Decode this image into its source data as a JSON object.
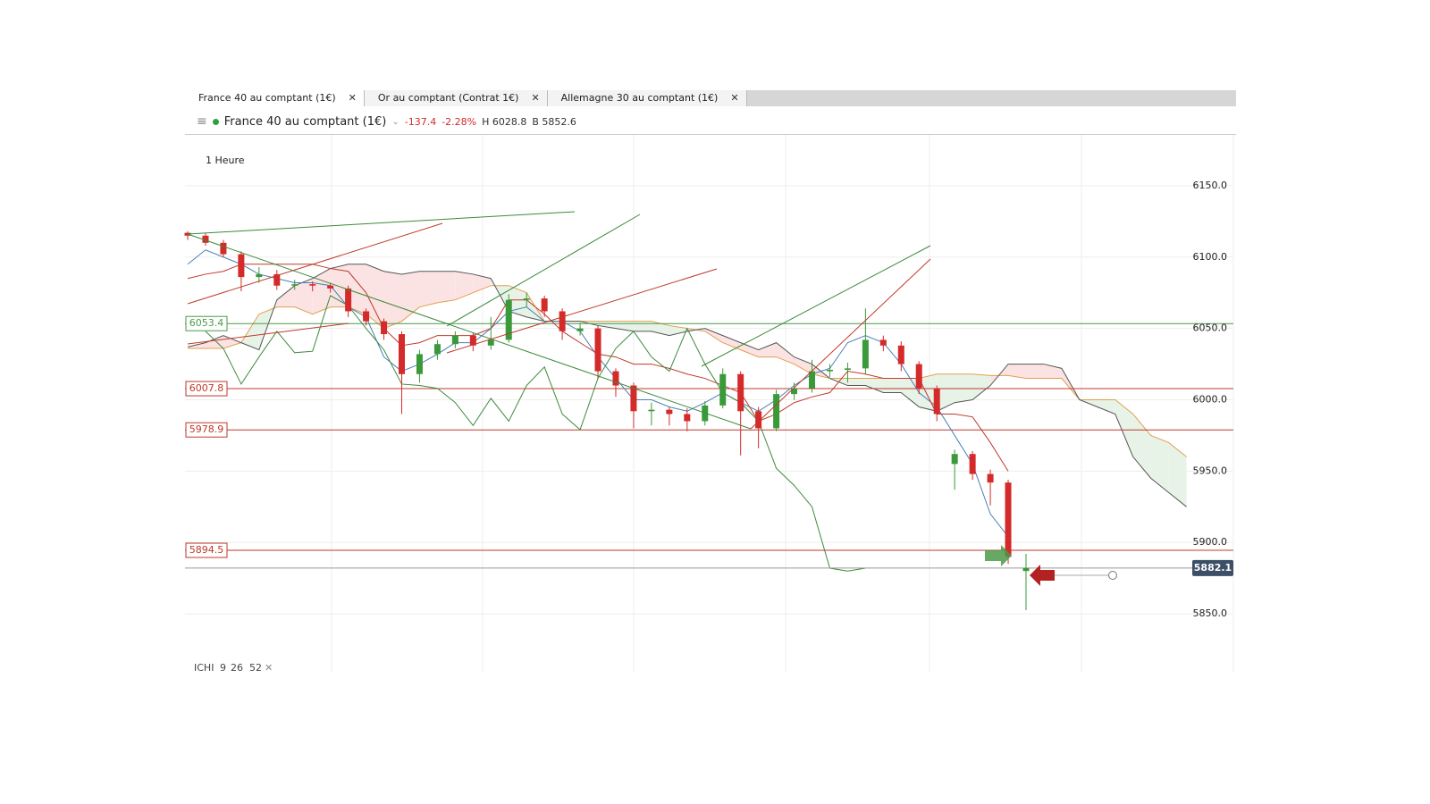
{
  "tabs": [
    "France 40 au comptant (1€)",
    "Or au comptant (Contrat 1€)",
    "Allemagne 30 au comptant (1€)"
  ],
  "header": {
    "title": "France 40 au comptant (1€)",
    "change": "-137.4",
    "change_pct": "-2.28%",
    "high": "H 6028.8",
    "low": "B 5852.6"
  },
  "indicator": {
    "name": "ICHI",
    "params": [
      9,
      26,
      52
    ]
  },
  "chart_data": {
    "type": "candlestick",
    "interval": "1 Heure",
    "ylim": [
      5808.75,
      6185.625
    ],
    "yticks": [
      {
        "value": 6150,
        "label": "6150.0"
      },
      {
        "value": 6100,
        "label": "6100.0"
      },
      {
        "value": 6050,
        "label": "6050.0"
      },
      {
        "value": 6000,
        "label": "6000.0"
      },
      {
        "value": 5950,
        "label": "5950.0"
      },
      {
        "value": 5900,
        "label": "5900.0"
      },
      {
        "value": 5850,
        "label": "5850.0"
      }
    ],
    "grid": true,
    "up_color": "#3a9a3a",
    "down_color": "#d42a2a",
    "candles": [
      {
        "o": 6117,
        "h": 6118,
        "l": 6112,
        "c": 6115
      },
      {
        "o": 6115,
        "h": 6117,
        "l": 6108,
        "c": 6110
      },
      {
        "o": 6110,
        "h": 6112,
        "l": 6100,
        "c": 6102
      },
      {
        "o": 6102,
        "h": 6104,
        "l": 6076,
        "c": 6086
      },
      {
        "o": 6086,
        "h": 6093,
        "l": 6082,
        "c": 6088
      },
      {
        "o": 6088,
        "h": 6091,
        "l": 6077,
        "c": 6080
      },
      {
        "o": 6080,
        "h": 6084,
        "l": 6077,
        "c": 6081
      },
      {
        "o": 6081,
        "h": 6083,
        "l": 6076,
        "c": 6080
      },
      {
        "o": 6080,
        "h": 6082,
        "l": 6075,
        "c": 6078
      },
      {
        "o": 6078,
        "h": 6080,
        "l": 6058,
        "c": 6062
      },
      {
        "o": 6062,
        "h": 6064,
        "l": 6052,
        "c": 6055
      },
      {
        "o": 6055,
        "h": 6057,
        "l": 6042,
        "c": 6046
      },
      {
        "o": 6046,
        "h": 6048,
        "l": 5990,
        "c": 6018
      },
      {
        "o": 6018,
        "h": 6035,
        "l": 6012,
        "c": 6032
      },
      {
        "o": 6032,
        "h": 6042,
        "l": 6028,
        "c": 6039
      },
      {
        "o": 6039,
        "h": 6048,
        "l": 6036,
        "c": 6045
      },
      {
        "o": 6045,
        "h": 6047,
        "l": 6034,
        "c": 6038
      },
      {
        "o": 6038,
        "h": 6058,
        "l": 6035,
        "c": 6042
      },
      {
        "o": 6042,
        "h": 6074,
        "l": 6040,
        "c": 6070
      },
      {
        "o": 6070,
        "h": 6075,
        "l": 6065,
        "c": 6071
      },
      {
        "o": 6071,
        "h": 6073,
        "l": 6058,
        "c": 6062
      },
      {
        "o": 6062,
        "h": 6064,
        "l": 6042,
        "c": 6048
      },
      {
        "o": 6048,
        "h": 6054,
        "l": 6045,
        "c": 6050
      },
      {
        "o": 6050,
        "h": 6052,
        "l": 6015,
        "c": 6020
      },
      {
        "o": 6020,
        "h": 6022,
        "l": 6002,
        "c": 6010
      },
      {
        "o": 6010,
        "h": 6012,
        "l": 5980,
        "c": 5992
      },
      {
        "o": 5992,
        "h": 5998,
        "l": 5982,
        "c": 5993
      },
      {
        "o": 5993,
        "h": 5995,
        "l": 5982,
        "c": 5990
      },
      {
        "o": 5990,
        "h": 5994,
        "l": 5978,
        "c": 5985
      },
      {
        "o": 5985,
        "h": 5999,
        "l": 5982,
        "c": 5996
      },
      {
        "o": 5996,
        "h": 6022,
        "l": 5994,
        "c": 6018
      },
      {
        "o": 6018,
        "h": 6020,
        "l": 5961,
        "c": 5992
      },
      {
        "o": 5992,
        "h": 5995,
        "l": 5966,
        "c": 5980
      },
      {
        "o": 5980,
        "h": 6007,
        "l": 5978,
        "c": 6004
      },
      {
        "o": 6004,
        "h": 6012,
        "l": 6000,
        "c": 6008
      },
      {
        "o": 6008,
        "h": 6028,
        "l": 6005,
        "c": 6020
      },
      {
        "o": 6020,
        "h": 6025,
        "l": 6016,
        "c": 6021
      },
      {
        "o": 6021,
        "h": 6026,
        "l": 6012,
        "c": 6022
      },
      {
        "o": 6022,
        "h": 6064,
        "l": 6018,
        "c": 6042
      },
      {
        "o": 6042,
        "h": 6045,
        "l": 6034,
        "c": 6038
      },
      {
        "o": 6038,
        "h": 6041,
        "l": 6020,
        "c": 6025
      },
      {
        "o": 6025,
        "h": 6027,
        "l": 6004,
        "c": 6008
      },
      {
        "o": 6008,
        "h": 6010,
        "l": 5985,
        "c": 5990
      },
      {
        "o": 5955,
        "h": 5965,
        "l": 5937,
        "c": 5962
      },
      {
        "o": 5962,
        "h": 5964,
        "l": 5944,
        "c": 5948
      },
      {
        "o": 5948,
        "h": 5951,
        "l": 5926,
        "c": 5942
      },
      {
        "o": 5942,
        "h": 5944,
        "l": 5885,
        "c": 5890
      },
      {
        "o": 5880,
        "h": 5892,
        "l": 5852.6,
        "c": 5882.1
      }
    ],
    "lines": [
      {
        "color": "#4a7fb5",
        "values": [
          6095,
          6105,
          6100,
          6095,
          6088,
          6085,
          6082,
          6082,
          6080,
          6065,
          6058,
          6030,
          6020,
          6025,
          6032,
          6040,
          6040,
          6050,
          6062,
          6065,
          6055,
          6055,
          6048,
          6030,
          6015,
          6000,
          6000,
          5995,
          5992,
          5998,
          6005,
          5998,
          5992,
          6000,
          6010,
          6018,
          6022,
          6040,
          6045,
          6040,
          6025,
          6005,
          5995,
          5975,
          5955,
          5920,
          5904,
          null,
          null,
          null,
          null,
          null,
          null,
          null,
          null,
          null,
          null
        ]
      },
      {
        "color": "#c0392b",
        "values": [
          6085,
          6088,
          6090,
          6095,
          6095,
          6095,
          6095,
          6095,
          6092,
          6090,
          6075,
          6050,
          6038,
          6040,
          6045,
          6045,
          6045,
          6050,
          6070,
          6070,
          6060,
          6048,
          6040,
          6032,
          6030,
          6025,
          6025,
          6022,
          6018,
          6015,
          6010,
          6005,
          5985,
          5990,
          5998,
          6002,
          6005,
          6020,
          6018,
          6015,
          6015,
          6015,
          5990,
          5990,
          5988,
          5970,
          5950,
          null,
          null,
          null,
          null,
          null,
          null,
          null,
          null,
          null,
          null
        ]
      },
      {
        "color": "#3c8a3c",
        "values": [
          null,
          6048,
          6036,
          6011,
          6030,
          6048,
          6033,
          6034,
          6073,
          6066,
          6050,
          6035,
          6011,
          6010,
          6008,
          5998,
          5982,
          6001,
          5985,
          6010,
          6023,
          5990,
          5979,
          6015,
          6036,
          6048,
          6030,
          6020,
          6050,
          6025,
          6005,
          5998,
          5985,
          5952,
          5940,
          5925,
          5882,
          5880,
          5882,
          null,
          null,
          null,
          null,
          null,
          null,
          null,
          null,
          null,
          null,
          null,
          null,
          null,
          null,
          null,
          null,
          null,
          null
        ]
      }
    ],
    "cloud": {
      "a_color": "#e0a050",
      "b_color": "#555",
      "up_fill": "#e8f3e8",
      "down_fill": "#fbe3e3",
      "a": [
        6036,
        6036,
        6036,
        6040,
        6060,
        6065,
        6065,
        6060,
        6065,
        6065,
        6060,
        6050,
        6055,
        6065,
        6068,
        6070,
        6075,
        6080,
        6080,
        6075,
        6055,
        6055,
        6055,
        6055,
        6055,
        6055,
        6055,
        6052,
        6050,
        6048,
        6040,
        6035,
        6030,
        6030,
        6025,
        6018,
        6015,
        6015,
        6015,
        6015,
        6015,
        6015,
        6018,
        6018,
        6018,
        6017,
        6017,
        6015,
        6015,
        6015,
        6000,
        6000,
        6000,
        5990,
        5975,
        5970,
        5960
      ],
      "b": [
        6037,
        6040,
        6045,
        6040,
        6035,
        6070,
        6080,
        6085,
        6092,
        6095,
        6095,
        6090,
        6088,
        6090,
        6090,
        6090,
        6088,
        6085,
        6062,
        6058,
        6055,
        6055,
        6055,
        6052,
        6050,
        6048,
        6048,
        6045,
        6048,
        6050,
        6045,
        6040,
        6035,
        6040,
        6030,
        6025,
        6015,
        6010,
        6010,
        6005,
        6005,
        5995,
        5992,
        5998,
        6000,
        6010,
        6025,
        6025,
        6025,
        6022,
        6000,
        5995,
        5990,
        5960,
        5945,
        5935,
        5925
      ]
    },
    "levels": [
      {
        "value": 6053.4,
        "color": "#4a9a4a"
      },
      {
        "value": 6007.8,
        "color": "#c0392b"
      },
      {
        "value": 5978.9,
        "color": "#c0392b"
      },
      {
        "value": 5894.5,
        "color": "#c0392b"
      }
    ],
    "last_price": 5882.1
  }
}
